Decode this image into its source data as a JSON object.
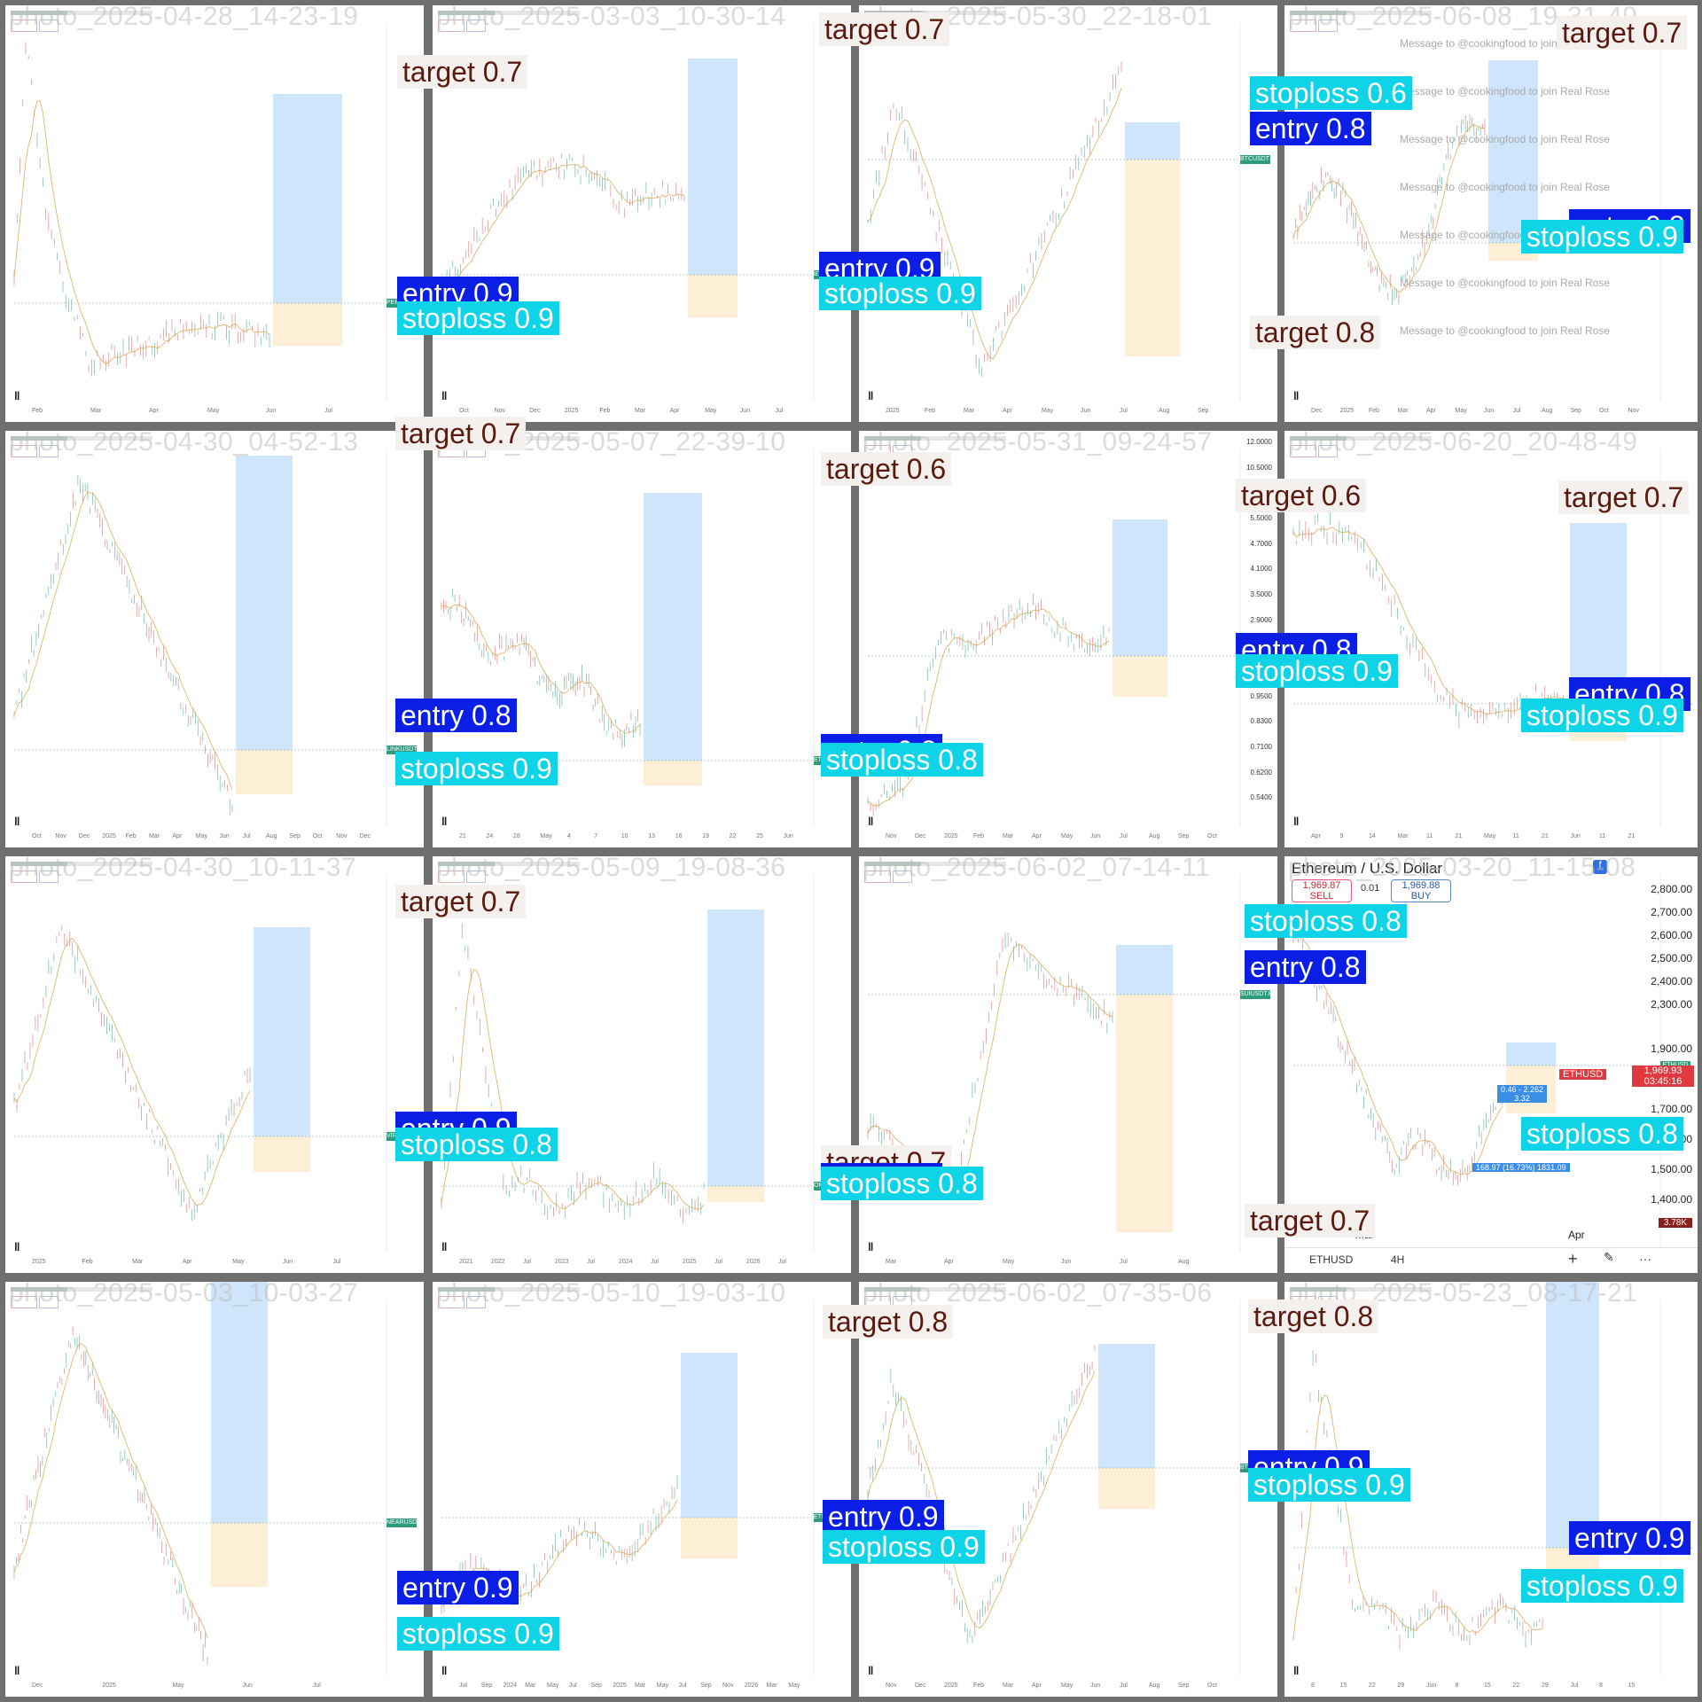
{
  "grid": {
    "rows": 4,
    "cols": 4
  },
  "colors": {
    "target": "#f3f0ee",
    "target_text": "#5a1a10",
    "entry": "#0a1ee6",
    "stoploss": "#0fd4e8",
    "profit_zone": "#c6e1fb",
    "loss_zone": "#fdeed6",
    "frame": "#6f6f6f"
  },
  "tiles": [
    {
      "title": "photo_2025-04-28_14-23-19",
      "ticker_tag": "PEPEUSDT.P",
      "x_ticks": [
        "Feb",
        "Mar",
        "Apr",
        "May",
        "Jun",
        "Jul"
      ],
      "shape": "spike_then_decline",
      "detections": [
        {
          "label": "entry 0.9"
        },
        {
          "label": "stoploss 0.9"
        }
      ]
    },
    {
      "title": "photo_2025-03-03_10-30-14",
      "ticker_tag": "BTCUSDT.P",
      "x_ticks": [
        "Oct",
        "Nov",
        "Dec",
        "2025",
        "Feb",
        "Mar",
        "Apr",
        "May",
        "Jun",
        "Jul"
      ],
      "shape": "rise_fall_rise",
      "detections": [
        {
          "label": "target 0.7"
        }
      ]
    },
    {
      "title": "photo_2025-05-30_22-18-01",
      "ticker_tag": "BTCUSDT.P",
      "x_ticks": [
        "2025",
        "Feb",
        "Mar",
        "Apr",
        "May",
        "Jun",
        "Jul",
        "Aug",
        "Sep"
      ],
      "shape": "v_recovery",
      "detections": [
        {
          "label": "target 0.7"
        },
        {
          "label": "entry 0.9"
        },
        {
          "label": "stoploss 0.9"
        }
      ]
    },
    {
      "title": "photo_2025-06-08_19-31-49",
      "ticker_tag": "",
      "x_ticks": [
        "Dec",
        "2025",
        "Feb",
        "Mar",
        "Apr",
        "May",
        "Jun",
        "Jul",
        "Aug",
        "Sep",
        "Oct",
        "Nov"
      ],
      "shape": "range",
      "watermark": "Message to @cookingfood to join Real Rose",
      "detections": [
        {
          "label": "stoploss 0.6"
        },
        {
          "label": "entry 0.8"
        },
        {
          "label": "target 0.8"
        },
        {
          "label": "target 0.7"
        },
        {
          "label": "entry 0.8"
        },
        {
          "label": "stoploss 0.9"
        }
      ]
    },
    {
      "title": "photo_2025-04-30_04-52-13",
      "ticker_tag": "LINKUSDT.P",
      "x_ticks": [
        "Oct",
        "Nov",
        "Dec",
        "2025",
        "Feb",
        "Mar",
        "Apr",
        "May",
        "Jun",
        "Jul",
        "Aug",
        "Sep",
        "Oct",
        "Nov",
        "Dec"
      ],
      "shape": "peak_then_decline",
      "detections": [
        {
          "label": "target 0.7"
        },
        {
          "label": "entry 0.8"
        },
        {
          "label": "stoploss 0.9"
        }
      ]
    },
    {
      "title": "photo_2025-05-07_22-39-10",
      "ticker_tag": "ETCUSDT.P",
      "x_ticks": [
        "21",
        "24",
        "28",
        "May",
        "4",
        "7",
        "10",
        "13",
        "16",
        "19",
        "22",
        "25",
        "Jun"
      ],
      "shape": "slow_decline",
      "detections": [
        {
          "label": "target 0.6"
        },
        {
          "label": "entry 0.8"
        }
      ]
    },
    {
      "title": "photo_2025-05-31_09-24-57",
      "ticker_tag": "XRPUSDT.P",
      "x_ticks": [
        "Nov",
        "Dec",
        "2025",
        "Feb",
        "Mar",
        "Apr",
        "May",
        "Jun",
        "Jul",
        "Aug",
        "Sep",
        "Oct"
      ],
      "shape": "step_up_range",
      "y_ticks": [
        "12.0000",
        "10.5000",
        "6.5000",
        "5.5000",
        "4.7000",
        "4.1000",
        "3.5000",
        "2.9000",
        "1.3000",
        "1.1000",
        "0.9500",
        "0.8300",
        "0.7100",
        "0.6200",
        "0.5400"
      ],
      "detections": [
        {
          "label": "stoploss 0.8"
        },
        {
          "label": "target 0.6"
        },
        {
          "label": "entry 0.8"
        },
        {
          "label": "stoploss 0.9"
        }
      ]
    },
    {
      "title": "photo_2025-06-20_20-48-49",
      "ticker_tag": "",
      "x_ticks": [
        "Apr",
        "9",
        "14",
        "Mar",
        "11",
        "21",
        "May",
        "11",
        "21",
        "Jun",
        "11",
        "21"
      ],
      "shape": "decline",
      "detections": [
        {
          "label": "target 0.7"
        },
        {
          "label": "entry 0.8"
        },
        {
          "label": "stoploss 0.9"
        }
      ]
    },
    {
      "title": "photo_2025-04-30_10-11-37",
      "ticker_tag": "VIRTUALUSDT.P",
      "x_ticks": [
        "2025",
        "Feb",
        "Mar",
        "Apr",
        "May",
        "Jun",
        "Jul"
      ],
      "shape": "peak_trough_rise",
      "detections": [
        {
          "label": "target 0.7"
        },
        {
          "label": "entry 0.9"
        },
        {
          "label": "stoploss 0.8"
        }
      ]
    },
    {
      "title": "photo_2025-05-09_19-08-36",
      "ticker_tag": "OMUSDT.P",
      "x_ticks": [
        "2021",
        "2022",
        "Jul",
        "2023",
        "Jul",
        "2024",
        "Jul",
        "2025",
        "Jul",
        "2026",
        "Jul"
      ],
      "shape": "spike_then_flat",
      "detections": [
        {
          "label": "target 0.7"
        },
        {
          "label": "entry 0.8"
        },
        {
          "label": "stoploss 0.8"
        }
      ]
    },
    {
      "title": "photo_2025-06-02_07-14-11",
      "ticker_tag": "SUIUSDT.P",
      "x_ticks": [
        "Mar",
        "Apr",
        "May",
        "Jun",
        "Jul",
        "Aug"
      ],
      "shape": "rally_pullback",
      "detections": [
        {
          "label": "stoploss 0.8"
        },
        {
          "label": "entry 0.8"
        },
        {
          "label": "target 0.7"
        }
      ]
    },
    {
      "title": "photo_2025-03-20_11-15-08",
      "ticker_tag": "ETHUSD",
      "shape": "decline_bounce",
      "eth": {
        "header": "Ethereum / U.S. Dollar",
        "sell": "1,969.87",
        "sell_label": "SELL",
        "spread": "0.01",
        "buy": "1,969.88",
        "buy_label": "BUY",
        "y_ticks": [
          "2,800.00",
          "2,700.00",
          "2,600.00",
          "2,500.00",
          "2,400.00",
          "2,300.00",
          "1,900.00",
          "1,800.00",
          "1,700.00",
          "1,600.00",
          "1,500.00",
          "1,400.00"
        ],
        "price_tag": "1,969.93",
        "countdown": "03:45:16",
        "symbol_badge": "ETHUSD",
        "stat1": "0.46 - 2.262",
        "stat1b": "3.32",
        "stat2": "168.97 (16.73%) 1831.09",
        "volume": "3.78K",
        "x_ticks": [
          "Mar",
          "Apr"
        ],
        "footer_symbol": "ETHUSD",
        "footer_tf": "4H",
        "footer_plus": "+",
        "footer_more": "···"
      },
      "detections": [
        {
          "label": "stoploss 0.8"
        },
        {
          "label": "entry 0.8"
        },
        {
          "label": "stoploss 0.6"
        },
        {
          "label": "entry 0.9"
        },
        {
          "label": "target 0.7"
        },
        {
          "label": "target 0.7"
        }
      ]
    },
    {
      "title": "photo_2025-05-03_10-03-27",
      "ticker_tag": "NEARUSDT.P",
      "x_ticks": [
        "Dec",
        "2025",
        "May",
        "Jun",
        "Jul"
      ],
      "shape": "peak_then_decline",
      "detections": [
        {
          "label": "entry 0.9"
        },
        {
          "label": "stoploss 0.9"
        }
      ]
    },
    {
      "title": "photo_2025-05-10_19-03-10",
      "ticker_tag": "ETHUSDT.P",
      "x_ticks": [
        "Jul",
        "Sep",
        "2024",
        "Mar",
        "May",
        "Jul",
        "Sep",
        "2025",
        "Mar",
        "May",
        "Jul",
        "Sep",
        "Nov",
        "2026",
        "Mar",
        "May"
      ],
      "shape": "range_break",
      "detections": [
        {
          "label": "target 0.8"
        },
        {
          "label": "entry 0.9"
        },
        {
          "label": "stoploss 0.9"
        }
      ]
    },
    {
      "title": "photo_2025-06-02_07-35-06",
      "ticker_tag": "BTCUSDT.P",
      "x_ticks": [
        "Nov",
        "Dec",
        "2025",
        "Feb",
        "Mar",
        "Apr",
        "May",
        "Jun",
        "Jul",
        "Aug",
        "Sep",
        "Oct"
      ],
      "shape": "v_recovery",
      "detections": [
        {
          "label": "target 0.8"
        },
        {
          "label": "entry 0.9"
        },
        {
          "label": "stoploss 0.9"
        }
      ]
    },
    {
      "title": "photo_2025-05-23_08-17-21",
      "ticker_tag": "",
      "x_ticks": [
        "8",
        "15",
        "22",
        "29",
        "Jun",
        "8",
        "15",
        "22",
        "29",
        "Jul",
        "8",
        "15"
      ],
      "shape": "spike_then_flat",
      "detections": [
        {
          "label": "entry 0.9"
        },
        {
          "label": "stoploss 0.9"
        }
      ]
    }
  ]
}
